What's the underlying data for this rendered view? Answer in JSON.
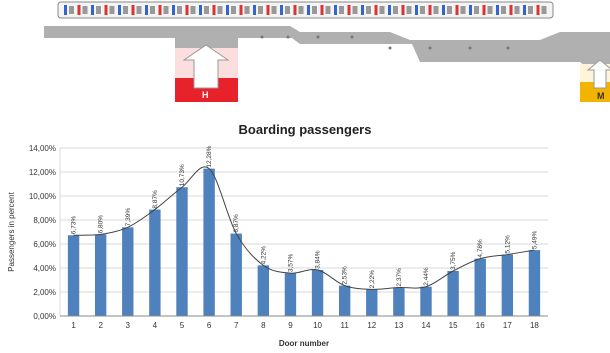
{
  "station": {
    "sign_h": "H",
    "sign_m": "M",
    "sign_h_color": "#e8222a",
    "sign_m_color": "#f2b400",
    "platform_color": "#b0b0b0"
  },
  "chart_data": {
    "type": "bar",
    "title": "Boarding passengers",
    "xlabel": "Door number",
    "ylabel": "Passengers in percent",
    "categories": [
      "1",
      "2",
      "3",
      "4",
      "5",
      "6",
      "7",
      "8",
      "9",
      "10",
      "11",
      "12",
      "13",
      "14",
      "15",
      "16",
      "17",
      "18"
    ],
    "values": [
      6.73,
      6.8,
      7.39,
      8.87,
      10.73,
      12.28,
      6.87,
      4.22,
      3.57,
      3.84,
      2.53,
      2.22,
      2.37,
      2.44,
      3.75,
      4.78,
      5.12,
      5.49
    ],
    "value_labels": [
      "6,73%",
      "6,80%",
      "7,39%",
      "8,87%",
      "10,73%",
      "12,28%",
      "6,87%",
      "4,22%",
      "3,57%",
      "3,84%",
      "2,53%",
      "2,22%",
      "2,37%",
      "2,44%",
      "3,75%",
      "4,78%",
      "5,12%",
      "5,49%"
    ],
    "yticks": [
      "0,00%",
      "2,00%",
      "4,00%",
      "6,00%",
      "8,00%",
      "10,00%",
      "12,00%",
      "14,00%"
    ],
    "ylim": [
      0,
      14
    ],
    "bar_color": "#4f81bd",
    "trend_color": "#444444",
    "grid": true,
    "legend": "none"
  }
}
